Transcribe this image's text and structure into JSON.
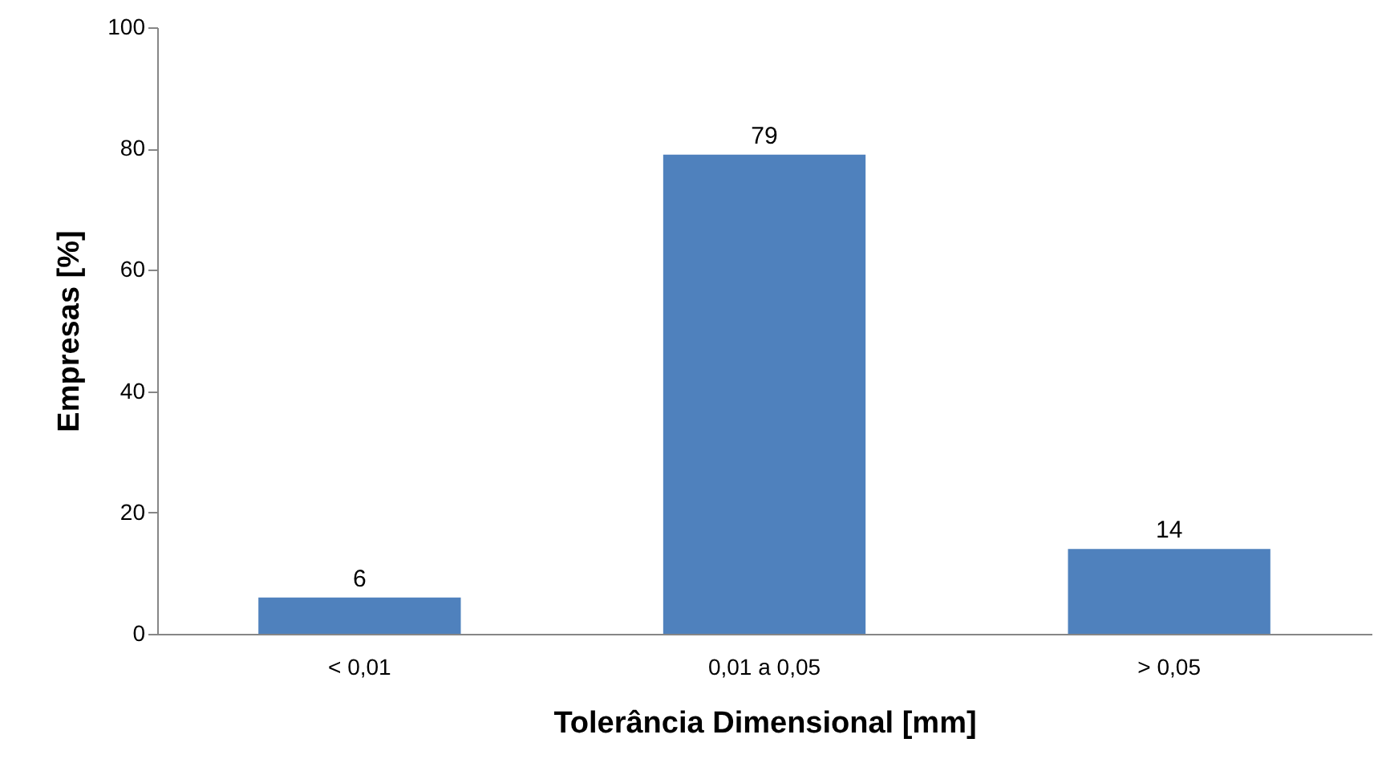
{
  "chart_data": {
    "type": "bar",
    "xlabel": "Tolerância Dimensional [mm]",
    "ylabel": "Empresas [%]",
    "categories": [
      "< 0,01",
      "0,01 a 0,05",
      "> 0,05"
    ],
    "values": [
      6,
      79,
      14
    ],
    "color": "#4f81bd",
    "ylim": [
      0,
      100
    ],
    "yticks": [
      0,
      20,
      40,
      60,
      80,
      100
    ],
    "data_labels": true,
    "grid": false
  }
}
